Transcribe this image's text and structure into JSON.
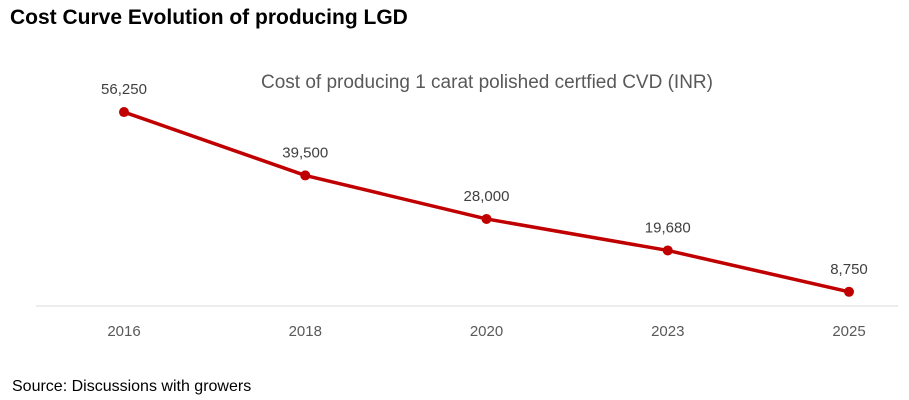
{
  "page": {
    "heading": "Cost Curve Evolution of producing LGD",
    "source": "Source: Discussions with growers"
  },
  "chart_data": {
    "type": "line",
    "title": "Cost of producing 1 carat polished certfied CVD (INR)",
    "categories": [
      "2016",
      "2018",
      "2020",
      "2023",
      "2025"
    ],
    "series": [
      {
        "name": "Cost of producing 1 carat polished certfied CVD (INR)",
        "values": [
          56250,
          39500,
          28000,
          19680,
          8750
        ],
        "labels": [
          "56,250",
          "39,500",
          "28,000",
          "19,680",
          "8,750"
        ],
        "color": "#C00000"
      }
    ],
    "xlabel": "",
    "ylabel": "",
    "ylim": [
      5000,
      70000
    ],
    "grid": false,
    "axis_color": "#D9D9D9"
  }
}
